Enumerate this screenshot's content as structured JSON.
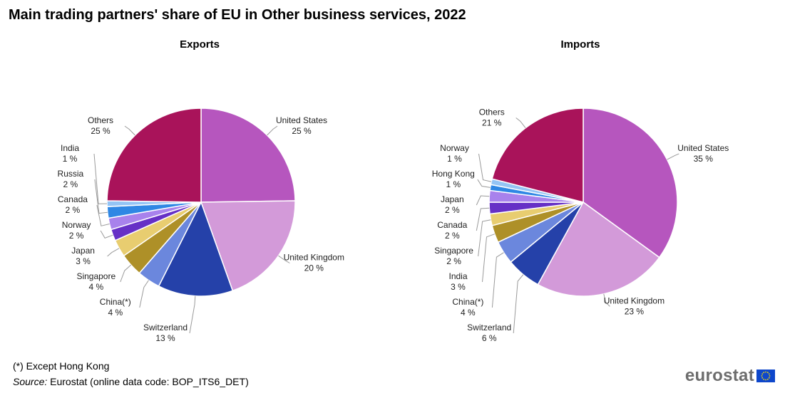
{
  "title": "Main trading partners' share of EU in Other business services, 2022",
  "footnote": "(*) Except Hong Kong",
  "source_label": "Source:",
  "source_text": " Eurostat (online data code: BOP_ITS6_DET)",
  "logo_text": "eurostat",
  "chart_data": [
    {
      "type": "pie",
      "title": "Exports",
      "unit": "%",
      "slices": [
        {
          "label": "United States",
          "value": 25,
          "color": "#b656be"
        },
        {
          "label": "United Kingdom",
          "value": 20,
          "color": "#d39ad9"
        },
        {
          "label": "Switzerland",
          "value": 13,
          "color": "#2541a9"
        },
        {
          "label": "China(*)",
          "value": 4,
          "color": "#6b87dd"
        },
        {
          "label": "Singapore",
          "value": 4,
          "color": "#ae9028"
        },
        {
          "label": "Japan",
          "value": 3,
          "color": "#e8cd70"
        },
        {
          "label": "Norway",
          "value": 2,
          "color": "#6630c6"
        },
        {
          "label": "Canada",
          "value": 2,
          "color": "#a882ec"
        },
        {
          "label": "Russia",
          "value": 2,
          "color": "#2f87e4"
        },
        {
          "label": "India",
          "value": 1,
          "color": "#94c4f5"
        },
        {
          "label": "Others",
          "value": 25,
          "color": "#a9135a"
        }
      ]
    },
    {
      "type": "pie",
      "title": "Imports",
      "unit": "%",
      "slices": [
        {
          "label": "United States",
          "value": 35,
          "color": "#b656be"
        },
        {
          "label": "United Kingdom",
          "value": 23,
          "color": "#d39ad9"
        },
        {
          "label": "Switzerland",
          "value": 6,
          "color": "#2541a9"
        },
        {
          "label": "China(*)",
          "value": 4,
          "color": "#6b87dd"
        },
        {
          "label": "India",
          "value": 3,
          "color": "#ae9028"
        },
        {
          "label": "Singapore",
          "value": 2,
          "color": "#e8cd70"
        },
        {
          "label": "Canada",
          "value": 2,
          "color": "#6630c6"
        },
        {
          "label": "Japan",
          "value": 2,
          "color": "#a882ec"
        },
        {
          "label": "Hong Kong",
          "value": 1,
          "color": "#2f87e4"
        },
        {
          "label": "Norway",
          "value": 1,
          "color": "#94c4f5"
        },
        {
          "label": "Others",
          "value": 21,
          "color": "#a9135a"
        }
      ]
    }
  ]
}
